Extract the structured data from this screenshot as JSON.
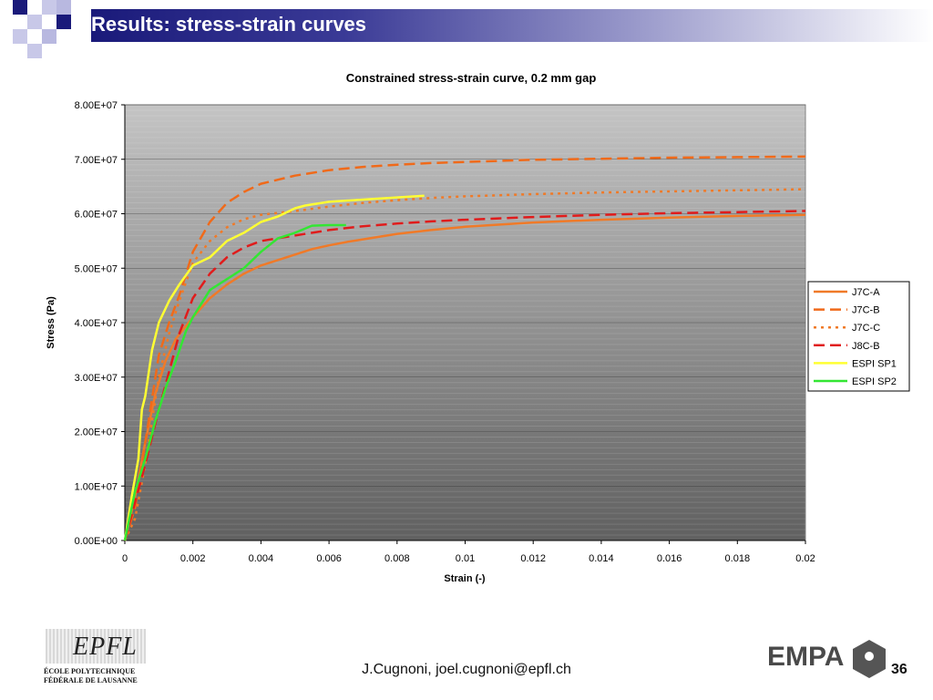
{
  "slide": {
    "title": "Results: stress-strain curves",
    "author": "J.Cugnoni, joel.cugnoni@epfl.ch",
    "page_number": "36"
  },
  "logos": {
    "epfl_mark": "EPFL",
    "epfl_line1": "ÉCOLE POLYTECHNIQUE",
    "epfl_line2": "FÉDÉRALE DE LAUSANNE",
    "empa_text": "EMPA"
  },
  "colors": {
    "title_bar_dark": "#1a1a7a",
    "deco_blue": "#1a1a7a",
    "deco_light": "#b8b8e0"
  },
  "chart_data": {
    "type": "line",
    "title": "Constrained stress-strain curve, 0.2 mm gap",
    "xlabel": "Strain (-)",
    "ylabel": "Stress (Pa)",
    "xlim": [
      0,
      0.02
    ],
    "ylim": [
      0,
      80000000
    ],
    "x_ticks": [
      0,
      0.002,
      0.004,
      0.006,
      0.008,
      0.01,
      0.012,
      0.014,
      0.016,
      0.018,
      0.02
    ],
    "x_tick_labels": [
      "0",
      "0.002",
      "0.004",
      "0.006",
      "0.008",
      "0.01",
      "0.012",
      "0.014",
      "0.016",
      "0.018",
      "0.02"
    ],
    "y_ticks": [
      0,
      10000000,
      20000000,
      30000000,
      40000000,
      50000000,
      60000000,
      70000000,
      80000000
    ],
    "y_tick_labels": [
      "0.00E+00",
      "1.00E+07",
      "2.00E+07",
      "3.00E+07",
      "4.00E+07",
      "5.00E+07",
      "6.00E+07",
      "7.00E+07",
      "8.00E+07"
    ],
    "grid": "horizontal",
    "legend_position": "right",
    "series": [
      {
        "name": "J7C-A",
        "color": "#f07a28",
        "style": "solid",
        "x": [
          0,
          0.0003,
          0.0006,
          0.0009,
          0.0012,
          0.0015,
          0.002,
          0.0025,
          0.003,
          0.0035,
          0.004,
          0.0045,
          0.005,
          0.0055,
          0.006,
          0.0065,
          0.007,
          0.008,
          0.009,
          0.01,
          0.012,
          0.014,
          0.016,
          0.018,
          0.02
        ],
        "y": [
          0,
          8000000,
          18000000,
          27000000,
          33000000,
          37000000,
          41000000,
          44500000,
          47000000,
          49000000,
          50500000,
          51500000,
          52500000,
          53500000,
          54200000,
          54800000,
          55300000,
          56300000,
          57000000,
          57600000,
          58400000,
          58900000,
          59300000,
          59600000,
          59800000
        ]
      },
      {
        "name": "J7C-B",
        "color": "#f06a1a",
        "style": "dash",
        "x": [
          0,
          0.0003,
          0.0006,
          0.001,
          0.0013,
          0.0016,
          0.002,
          0.0025,
          0.003,
          0.0035,
          0.004,
          0.005,
          0.006,
          0.007,
          0.008,
          0.009,
          0.01,
          0.012,
          0.014,
          0.016,
          0.018,
          0.02
        ],
        "y": [
          0,
          6000000,
          18000000,
          34000000,
          40000000,
          45000000,
          53000000,
          58500000,
          62000000,
          64000000,
          65500000,
          67000000,
          68000000,
          68600000,
          69000000,
          69300000,
          69500000,
          69900000,
          70100000,
          70300000,
          70400000,
          70500000
        ]
      },
      {
        "name": "J7C-C",
        "color": "#f07a28",
        "style": "dot",
        "x": [
          0,
          0.0003,
          0.0006,
          0.001,
          0.0013,
          0.0016,
          0.002,
          0.0025,
          0.003,
          0.0035,
          0.004,
          0.005,
          0.006,
          0.007,
          0.008,
          0.009,
          0.01,
          0.012,
          0.014,
          0.016,
          0.018,
          0.02
        ],
        "y": [
          0,
          4000000,
          14000000,
          30000000,
          38000000,
          44000000,
          51000000,
          55000000,
          57500000,
          59000000,
          59800000,
          60500000,
          61300000,
          62000000,
          62500000,
          62900000,
          63200000,
          63600000,
          63900000,
          64100000,
          64300000,
          64500000
        ]
      },
      {
        "name": "J8C-B",
        "color": "#e01c1c",
        "style": "dash",
        "x": [
          0,
          0.0003,
          0.0006,
          0.001,
          0.0013,
          0.0016,
          0.002,
          0.0025,
          0.003,
          0.0035,
          0.004,
          0.005,
          0.006,
          0.007,
          0.008,
          0.009,
          0.01,
          0.012,
          0.014,
          0.016,
          0.018,
          0.02
        ],
        "y": [
          0,
          7000000,
          14000000,
          24000000,
          31000000,
          38000000,
          44500000,
          49000000,
          52000000,
          53800000,
          55000000,
          56000000,
          57000000,
          57700000,
          58200000,
          58600000,
          58900000,
          59400000,
          59800000,
          60100000,
          60300000,
          60500000
        ]
      },
      {
        "name": "ESPI SP1",
        "color": "#ffff33",
        "style": "solid",
        "x": [
          0,
          0.0002,
          0.0004,
          0.0005,
          0.0006,
          0.0008,
          0.001,
          0.0013,
          0.0016,
          0.002,
          0.0025,
          0.003,
          0.0035,
          0.004,
          0.0045,
          0.005,
          0.0053,
          0.006,
          0.007,
          0.008,
          0.0088
        ],
        "y": [
          0,
          8000000,
          15000000,
          24000000,
          26500000,
          35000000,
          40000000,
          44000000,
          47000000,
          50500000,
          52000000,
          55000000,
          56500000,
          58500000,
          59500000,
          61000000,
          61500000,
          62200000,
          62600000,
          63000000,
          63300000
        ]
      },
      {
        "name": "ESPI SP2",
        "color": "#33e633",
        "style": "solid",
        "x": [
          0,
          0.0003,
          0.0006,
          0.0009,
          0.0012,
          0.0015,
          0.0018,
          0.002,
          0.0025,
          0.003,
          0.0035,
          0.004,
          0.0045,
          0.005,
          0.0055,
          0.006,
          0.0065
        ],
        "y": [
          0,
          9000000,
          15000000,
          22000000,
          28000000,
          33000000,
          38500000,
          41000000,
          46000000,
          48000000,
          50000000,
          53000000,
          55500000,
          56500000,
          57800000,
          57900000,
          57900000
        ]
      }
    ]
  }
}
